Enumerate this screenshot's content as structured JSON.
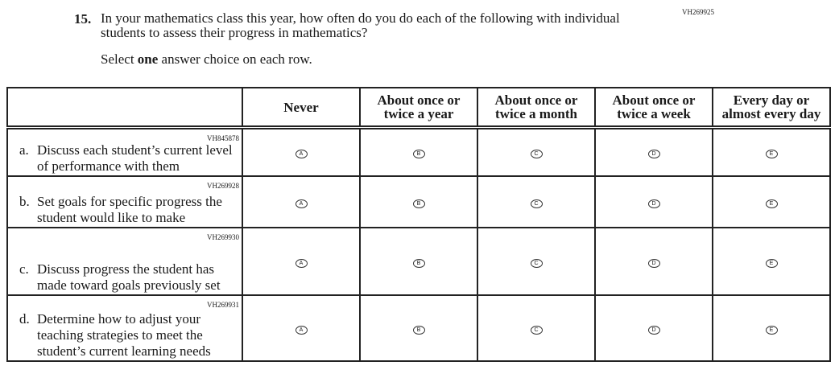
{
  "question": {
    "number": "15.",
    "code": "VH269925",
    "text": "In your mathematics class this year, how often do you do each of the following with individual students to assess their progress in mathematics?",
    "instruction_prefix": "Select ",
    "instruction_bold": "one",
    "instruction_suffix": " answer choice on each row."
  },
  "columns": [
    "Never",
    "About once or twice a year",
    "About once or twice a month",
    "About once or twice a week",
    "Every day or almost every day"
  ],
  "choice_letters": [
    "A",
    "B",
    "C",
    "D",
    "E"
  ],
  "rows": [
    {
      "letter": "a.",
      "code": "VH845878",
      "text": "Discuss each student’s current level of performance with them"
    },
    {
      "letter": "b.",
      "code": "VH269928",
      "text": "Set goals for specific progress the student would like to make"
    },
    {
      "letter": "c.",
      "code": "VH269930",
      "text": "Discuss progress the student has made toward goals previously set"
    },
    {
      "letter": "d.",
      "code": "VH269931",
      "text": "Determine how to adjust your teaching strategies to meet the student’s current learning needs"
    }
  ]
}
